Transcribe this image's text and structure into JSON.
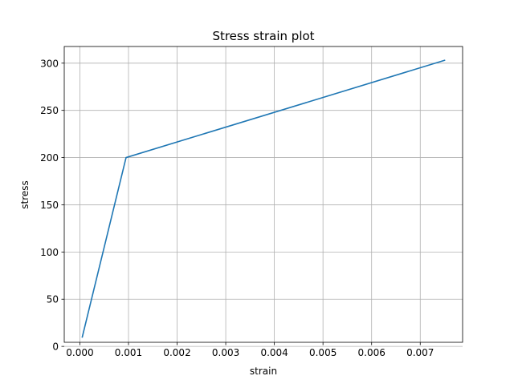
{
  "chart_data": {
    "type": "line",
    "title": "Stress strain plot",
    "xlabel": "strain",
    "ylabel": "stress",
    "xlim": [
      -0.000321,
      0.007871
    ],
    "ylim": [
      4.35,
      317.65
    ],
    "x_ticks": [
      0.0,
      0.001,
      0.002,
      0.003,
      0.004,
      0.005,
      0.006,
      0.007
    ],
    "x_tick_labels": [
      "0.000",
      "0.001",
      "0.002",
      "0.003",
      "0.004",
      "0.005",
      "0.006",
      "0.007"
    ],
    "y_ticks": [
      0,
      50,
      100,
      150,
      200,
      250,
      300
    ],
    "y_tick_labels": [
      "0",
      "50",
      "100",
      "150",
      "200",
      "250",
      "300"
    ],
    "grid": true,
    "series": [
      {
        "color": "#1f77b4",
        "x": [
          5e-05,
          0.00095,
          0.0075
        ],
        "y": [
          10,
          200,
          303
        ]
      }
    ]
  }
}
